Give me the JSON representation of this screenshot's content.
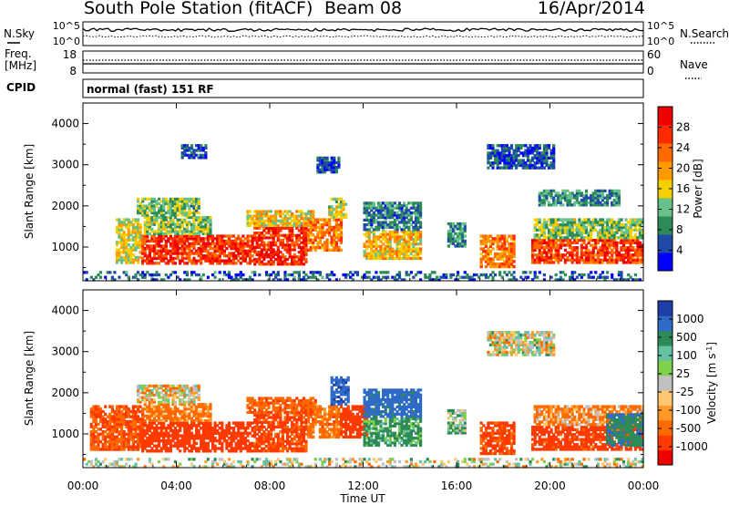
{
  "header": {
    "station": "South Pole Station (fitACF)",
    "beam": "Beam 08",
    "date": "16/Apr/2014"
  },
  "left_labels": {
    "nsky": "N.Sky",
    "freq_line1": "Freq.",
    "freq_line2": "[MHz]",
    "cpid": "CPID"
  },
  "right_labels": {
    "nsearch": "N.Search",
    "nave": "Nave"
  },
  "noise_panel": {
    "top_tick": "10^5",
    "bottom_tick": "10^0"
  },
  "freq_panel": {
    "left_ticks": [
      "18",
      "8"
    ],
    "right_ticks": [
      "60",
      "0"
    ]
  },
  "cpid_text": "normal (fast) 151 RF",
  "colors": {
    "power_scale": [
      "#0000ff",
      "#1f4aa8",
      "#2e8b57",
      "#66c28a",
      "#f4d000",
      "#ff9a00",
      "#ff6a00",
      "#ff2a00",
      "#ee0000"
    ],
    "velocity_scale": [
      "#1f3fa8",
      "#2f6bc6",
      "#2e8b57",
      "#66c2a0",
      "#7fd04a",
      "#c0c0c0",
      "#ffc870",
      "#ff9a2a",
      "#ff6a00",
      "#ff3a00",
      "#ee0000"
    ]
  },
  "chart_data": [
    {
      "type": "heatmap",
      "panel": "power",
      "ylabel": "Slant Range [km]",
      "ylim": [
        180,
        4500
      ],
      "yticks": [
        "1000",
        "2000",
        "3000",
        "4000"
      ],
      "colorbar_label": "Power [dB]",
      "colorbar_ticks": [
        "4",
        "8",
        "12",
        "16",
        "20",
        "24",
        "28"
      ],
      "colorbar_range": [
        0,
        32
      ],
      "blobs": [
        {
          "t": [
            1.4,
            2.5
          ],
          "r": [
            600,
            1700
          ],
          "v": 16
        },
        {
          "t": [
            2.5,
            7.3
          ],
          "r": [
            580,
            1300
          ],
          "v": 27
        },
        {
          "t": [
            2.6,
            5.5
          ],
          "r": [
            1300,
            1750
          ],
          "v": 13
        },
        {
          "t": [
            2.3,
            5.0
          ],
          "r": [
            1750,
            2200
          ],
          "v": 12
        },
        {
          "t": [
            7.3,
            9.6
          ],
          "r": [
            560,
            1550
          ],
          "v": 27
        },
        {
          "t": [
            7.0,
            9.9
          ],
          "r": [
            1500,
            1900
          ],
          "v": 17
        },
        {
          "t": [
            9.6,
            11.1
          ],
          "r": [
            900,
            1700
          ],
          "v": 22
        },
        {
          "t": [
            10.5,
            11.3
          ],
          "r": [
            1700,
            2200
          ],
          "v": 15
        },
        {
          "t": [
            4.2,
            5.3
          ],
          "r": [
            3150,
            3500
          ],
          "v": 6
        },
        {
          "t": [
            10.0,
            11.0
          ],
          "r": [
            2800,
            3200
          ],
          "v": 5
        },
        {
          "t": [
            12.0,
            14.5
          ],
          "r": [
            700,
            1400
          ],
          "v": 18
        },
        {
          "t": [
            12.0,
            14.5
          ],
          "r": [
            1400,
            2100
          ],
          "v": 8
        },
        {
          "t": [
            15.6,
            16.4
          ],
          "r": [
            1000,
            1600
          ],
          "v": 9
        },
        {
          "t": [
            17.0,
            18.5
          ],
          "r": [
            500,
            1300
          ],
          "v": 22
        },
        {
          "t": [
            19.2,
            24.0
          ],
          "r": [
            600,
            1200
          ],
          "v": 26
        },
        {
          "t": [
            19.3,
            24.0
          ],
          "r": [
            1200,
            1700
          ],
          "v": 13
        },
        {
          "t": [
            17.3,
            20.2
          ],
          "r": [
            2900,
            3500
          ],
          "v": 5
        },
        {
          "t": [
            19.5,
            23.0
          ],
          "r": [
            2000,
            2400
          ],
          "v": 9
        },
        {
          "t": [
            0.0,
            24.0
          ],
          "r": [
            180,
            420
          ],
          "v": 6
        }
      ]
    },
    {
      "type": "heatmap",
      "panel": "velocity",
      "ylabel": "Slant Range [km]",
      "xlabel": "Time UT",
      "ylim": [
        180,
        4500
      ],
      "yticks": [
        "1000",
        "2000",
        "3000",
        "4000"
      ],
      "xticks": [
        "00:00",
        "04:00",
        "08:00",
        "12:00",
        "16:00",
        "20:00",
        "00:00"
      ],
      "xlim_hours": [
        0,
        24
      ],
      "colorbar_label": "Velocity [m s^-1]",
      "colorbar_ticks": [
        "1000",
        "500",
        "100",
        "25",
        "-25",
        "-100",
        "-500",
        "-1000"
      ],
      "blobs": [
        {
          "t": [
            0.3,
            2.6
          ],
          "r": [
            600,
            1700
          ],
          "v": -300
        },
        {
          "t": [
            2.5,
            7.3
          ],
          "r": [
            560,
            1300
          ],
          "v": -450
        },
        {
          "t": [
            2.6,
            5.5
          ],
          "r": [
            1300,
            1750
          ],
          "v": -150
        },
        {
          "t": [
            2.3,
            5.0
          ],
          "r": [
            1750,
            2200
          ],
          "v": -20
        },
        {
          "t": [
            7.3,
            9.6
          ],
          "r": [
            560,
            1550
          ],
          "v": -350
        },
        {
          "t": [
            7.0,
            10.0
          ],
          "r": [
            1500,
            1900
          ],
          "v": -250
        },
        {
          "t": [
            9.6,
            11.1
          ],
          "r": [
            900,
            1700
          ],
          "v": -200
        },
        {
          "t": [
            10.6,
            11.4
          ],
          "r": [
            1700,
            2400
          ],
          "v": 700
        },
        {
          "t": [
            11.0,
            12.2
          ],
          "r": [
            900,
            1700
          ],
          "v": -600
        },
        {
          "t": [
            12.0,
            14.5
          ],
          "r": [
            700,
            1400
          ],
          "v": 150
        },
        {
          "t": [
            12.0,
            14.5
          ],
          "r": [
            1400,
            2100
          ],
          "v": 400
        },
        {
          "t": [
            15.6,
            16.4
          ],
          "r": [
            1000,
            1600
          ],
          "v": 80
        },
        {
          "t": [
            17.0,
            18.5
          ],
          "r": [
            500,
            1300
          ],
          "v": -350
        },
        {
          "t": [
            19.2,
            24.0
          ],
          "r": [
            600,
            1200
          ],
          "v": -400
        },
        {
          "t": [
            19.3,
            24.0
          ],
          "r": [
            1200,
            1700
          ],
          "v": -120
        },
        {
          "t": [
            22.4,
            24.0
          ],
          "r": [
            700,
            1500
          ],
          "v": 250
        },
        {
          "t": [
            17.3,
            20.2
          ],
          "r": [
            2900,
            3500
          ],
          "v": 0
        },
        {
          "t": [
            0.0,
            24.0
          ],
          "r": [
            180,
            420
          ],
          "v": 0
        }
      ]
    }
  ]
}
